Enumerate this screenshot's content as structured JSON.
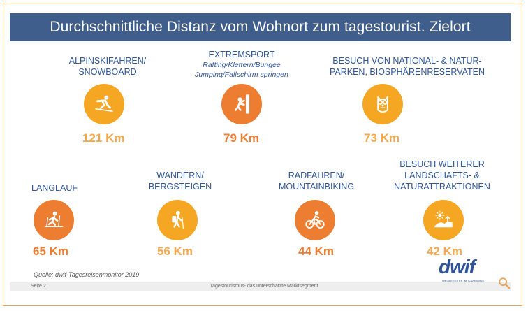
{
  "title": "Durchschnittliche Distanz vom Wohnort zum tagestourist. Zielort",
  "items": [
    {
      "label_lines": [
        "ALPINSKIFAHREN/",
        "SNOWBOARD"
      ],
      "value": "121 Km",
      "icon": "skier-icon"
    },
    {
      "label_lines": [
        "EXTREMSPORT"
      ],
      "sublabel_lines": [
        "Rafting/Klettern/Bungee",
        "Jumping/Fallschirm springen"
      ],
      "value": "79 Km",
      "icon": "climber-icon"
    },
    {
      "label_lines": [
        "BESUCH VON NATIONAL- & NATUR-",
        "PARKEN, BIOSPHÄRENRESERVATEN"
      ],
      "value": "73 Km",
      "icon": "owl-icon"
    },
    {
      "label_lines": [
        "LANGLAUF"
      ],
      "value": "65 Km",
      "icon": "cross-country-skier-icon"
    },
    {
      "label_lines": [
        "WANDERN/",
        "BERGSTEIGEN"
      ],
      "value": "56 Km",
      "icon": "hiker-icon"
    },
    {
      "label_lines": [
        "RADFAHREN/",
        "MOUNTAINBIKING"
      ],
      "value": "44 Km",
      "icon": "cyclist-icon"
    },
    {
      "label_lines": [
        "BESUCH WEITERER",
        "LANDSCHAFTS- &",
        "NATURATTRAKTIONEN"
      ],
      "value": "42 Km",
      "icon": "landscape-icon"
    }
  ],
  "source": "Quelle: dwif-Tagesreisenmonitor 2019",
  "footer": {
    "page": "Seite 2",
    "center": "Tagestourismus- das unterschätzte Marktsegment"
  },
  "logo": {
    "text": "dwif",
    "subtitle": "WEGBEREITER IM TOURISMUS"
  },
  "colors": {
    "header": "#3f5e8c",
    "label": "#2f5597",
    "orange": "#ed7d31",
    "gold": "#f5a623"
  }
}
